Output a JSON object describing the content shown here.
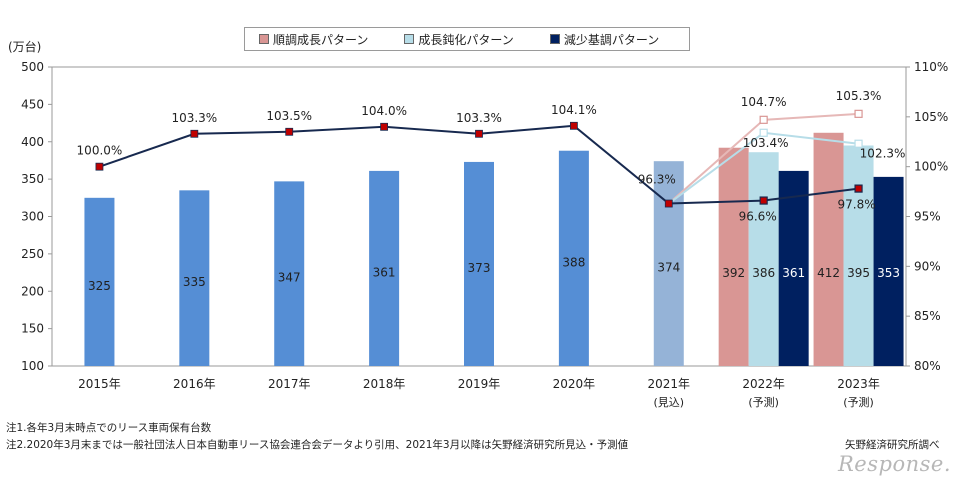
{
  "legend": [
    {
      "label": "順調成長パターン",
      "color": "#d99694"
    },
    {
      "label": "成長鈍化パターン",
      "color": "#b7dde8"
    },
    {
      "label": "減少基調パターン",
      "color": "#002060"
    }
  ],
  "notes": {
    "note1": "注1.各年3月末時点でのリース車両保有台数",
    "note2": "注2.2020年3月末までは一般社団法人日本自動車リース協会連合会データより引用、2021年3月以降は矢野経済研究所見込・予測値",
    "source": "矢野経済研究所調べ"
  },
  "watermark": "Response.",
  "chart_data": {
    "type": "bar",
    "ylabel": "(万台)",
    "ylim": [
      100,
      500
    ],
    "yticks": [
      "100",
      "150",
      "200",
      "250",
      "300",
      "350",
      "400",
      "450",
      "500"
    ],
    "y2lim": [
      80,
      110
    ],
    "y2ticks": [
      "80%",
      "85%",
      "90%",
      "95%",
      "100%",
      "105%",
      "110%"
    ],
    "categories": [
      "2015年",
      "2016年",
      "2017年",
      "2018年",
      "2019年",
      "2020年",
      "2021年",
      "2022年",
      "2023年"
    ],
    "category_sublabels": [
      "",
      "",
      "",
      "",
      "",
      "",
      "(見込)",
      "(予測)",
      "(予測)"
    ],
    "bars_actual": [
      {
        "year": "2015年",
        "value": 325,
        "label": "325",
        "color": "#558ed5"
      },
      {
        "year": "2016年",
        "value": 335,
        "label": "335",
        "color": "#558ed5"
      },
      {
        "year": "2017年",
        "value": 347,
        "label": "347",
        "color": "#558ed5"
      },
      {
        "year": "2018年",
        "value": 361,
        "label": "361",
        "color": "#558ed5"
      },
      {
        "year": "2019年",
        "value": 373,
        "label": "373",
        "color": "#558ed5"
      },
      {
        "year": "2020年",
        "value": 388,
        "label": "388",
        "color": "#558ed5"
      },
      {
        "year": "2021年",
        "value": 374,
        "label": "374",
        "color": "#95b3d7"
      }
    ],
    "bars_forecast": [
      {
        "year": "2022年",
        "values": [
          392,
          386,
          361
        ],
        "labels": [
          "392",
          "386",
          "361"
        ]
      },
      {
        "year": "2023年",
        "values": [
          412,
          395,
          353
        ],
        "labels": [
          "412",
          "395",
          "353"
        ]
      }
    ],
    "growth_line": {
      "values": [
        100.0,
        103.3,
        103.5,
        104.0,
        103.3,
        104.1,
        96.3
      ],
      "labels": [
        "100.0%",
        "103.3%",
        "103.5%",
        "104.0%",
        "103.3%",
        "104.1%",
        "96.3%"
      ],
      "color": "#17294f"
    },
    "growth_forecast": [
      {
        "pattern": "順調成長パターン",
        "values": [
          104.7,
          105.3
        ],
        "labels": [
          "104.7%",
          "105.3%"
        ],
        "color": "#e6b8b7"
      },
      {
        "pattern": "成長鈍化パターン",
        "values": [
          103.4,
          102.3
        ],
        "labels": [
          "103.4%",
          "102.3%"
        ],
        "color": "#b7dde8"
      },
      {
        "pattern": "減少基調パターン",
        "values": [
          96.6,
          97.8
        ],
        "labels": [
          "96.6%",
          "97.8%"
        ],
        "color": "#17294f"
      }
    ],
    "grid": false
  }
}
